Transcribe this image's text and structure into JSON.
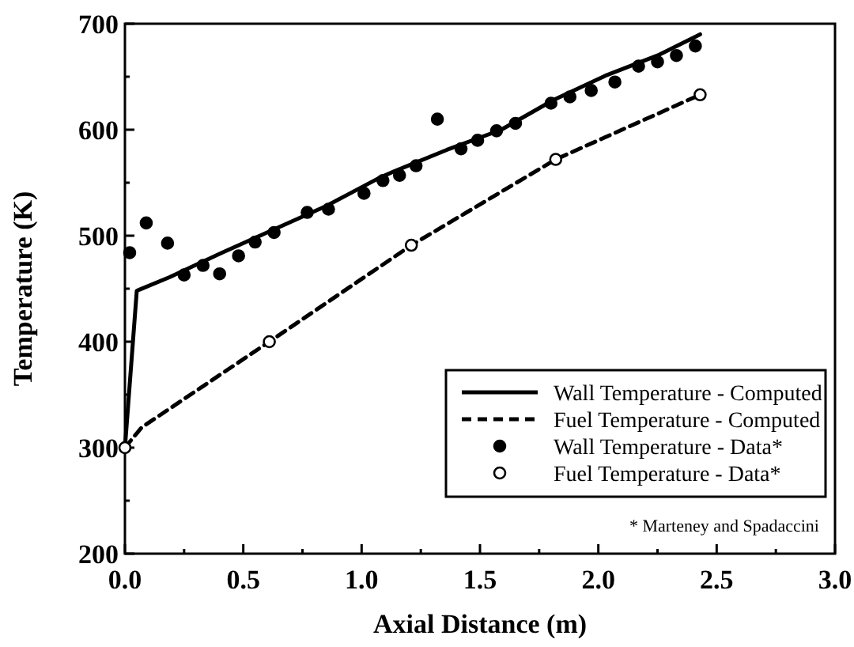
{
  "chart_data": {
    "type": "line",
    "xlabel": "Axial Distance (m)",
    "ylabel": "Temperature (K)",
    "xlim": [
      0,
      3
    ],
    "xticks": [
      {
        "value": 0,
        "label": "0.0"
      },
      {
        "value": 0.25,
        "label": null
      },
      {
        "value": 0.5,
        "label": "0.5"
      },
      {
        "value": 0.75,
        "label": null
      },
      {
        "value": 1,
        "label": "1.0"
      },
      {
        "value": 1.25,
        "label": null
      },
      {
        "value": 1.5,
        "label": "1.5"
      },
      {
        "value": 1.75,
        "label": null
      },
      {
        "value": 2,
        "label": "2.0"
      },
      {
        "value": 2.25,
        "label": null
      },
      {
        "value": 2.5,
        "label": "2.5"
      },
      {
        "value": 2.75,
        "label": null
      },
      {
        "value": 3,
        "label": "3.0"
      }
    ],
    "ylim": [
      200,
      700
    ],
    "yticks": [
      200,
      {
        "value": 250,
        "label": null
      },
      300,
      {
        "value": 350,
        "label": null
      },
      400,
      {
        "value": 450,
        "label": null
      },
      500,
      {
        "value": 550,
        "label": null
      },
      600,
      {
        "value": 650,
        "label": null
      },
      700
    ],
    "legend": "bottom right",
    "grid": false,
    "annotations": [
      "* Marteney and Spadaccini"
    ],
    "series": [
      {
        "name": "Wall Temperature - Computed",
        "line_style": "solid",
        "color": "#000000",
        "x": [
          0,
          0.05,
          0.06,
          0.19,
          0.41,
          0.63,
          0.85,
          1.07,
          1.14,
          1.36,
          1.59,
          1.81,
          2.03,
          2.25,
          2.43
        ],
        "values": [
          300,
          448,
          449,
          461,
          484,
          506,
          528,
          554,
          561,
          581,
          600,
          628,
          651,
          670,
          690
        ]
      },
      {
        "name": "Fuel Temperature - Computed",
        "line_style": "dashed",
        "color": "#000000",
        "x": [
          0,
          0.07,
          0.61,
          1.21,
          1.82,
          2.43
        ],
        "values": [
          300,
          319,
          400,
          491,
          572,
          633
        ]
      },
      {
        "name": "Wall Temperature - Data*",
        "type": "scatter",
        "marker": "circle",
        "color": "#000000",
        "x": [
          0.02,
          0.09,
          0.18,
          0.25,
          0.33,
          0.4,
          0.48,
          0.55,
          0.63,
          0.77,
          0.86,
          1.01,
          1.09,
          1.16,
          1.23,
          1.32,
          1.42,
          1.49,
          1.57,
          1.65,
          1.8,
          1.88,
          1.97,
          2.07,
          2.17,
          2.25,
          2.33,
          2.41
        ],
        "values": [
          484,
          512,
          493,
          463,
          472,
          464,
          481,
          494,
          503,
          522,
          525,
          540,
          552,
          557,
          566,
          610,
          582,
          590,
          599,
          606,
          625,
          631,
          637,
          645,
          660,
          664,
          670,
          679
        ]
      },
      {
        "name": "Fuel Temperature - Data*",
        "type": "scatter",
        "marker": "circle",
        "color": "#ffffff",
        "x": [
          0,
          0.61,
          1.21,
          1.82,
          2.43
        ],
        "values": [
          300,
          400,
          491,
          572,
          633
        ]
      }
    ]
  }
}
